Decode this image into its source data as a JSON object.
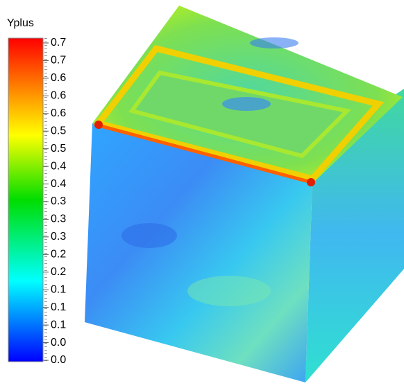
{
  "colorbar": {
    "title": "Yplus",
    "labels": [
      "0.7",
      "0.7",
      "0.6",
      "0.6",
      "0.6",
      "0.5",
      "0.5",
      "0.4",
      "0.4",
      "0.3",
      "0.3",
      "0.3",
      "0.2",
      "0.2",
      "0.1",
      "0.1",
      "0.1",
      "0.0",
      "0.0"
    ]
  }
}
